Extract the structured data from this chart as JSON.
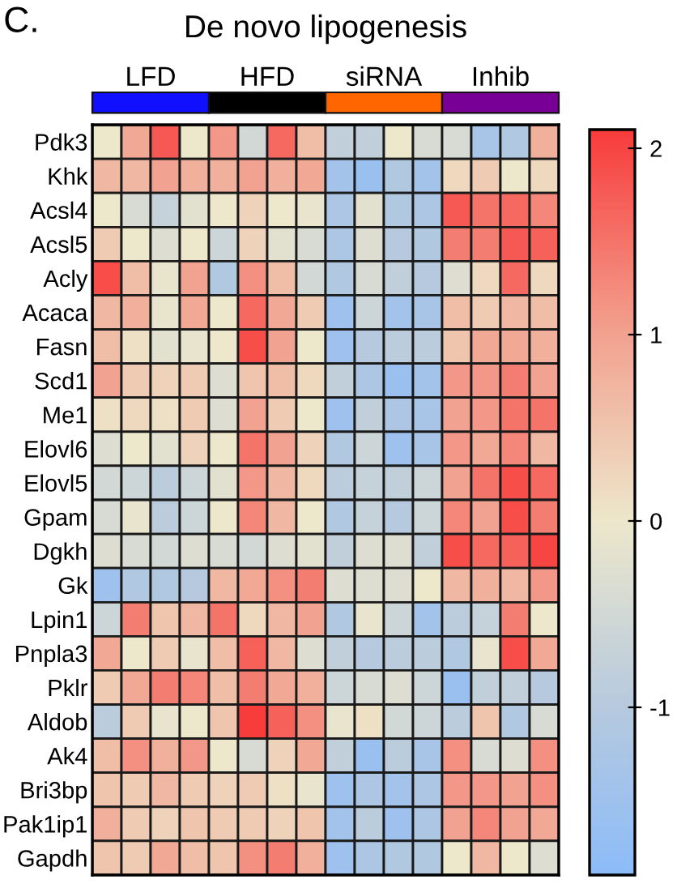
{
  "chart_data": {
    "type": "heatmap",
    "title": "De novo lipogenesis",
    "annotations": [
      "C.",
      "LFD",
      "HFD",
      "siRNA",
      "Inhib"
    ],
    "categories": [
      null,
      null,
      null,
      null,
      null,
      null,
      null,
      null,
      null,
      null,
      null,
      null,
      null,
      null,
      null,
      null
    ],
    "y_categories": [
      "Pdk3",
      "Khk",
      "Acsl4",
      "Acsl5",
      "Acly",
      "Acaca",
      "Fasn",
      "Scd1",
      "Me1",
      "Elovl6",
      "Elovl5",
      "Gpam",
      "Dgkh",
      "Gk",
      "Lpin1",
      "Pnpla3",
      "Pklr",
      "Aldob",
      "Ak4",
      "Bri3bp",
      "Pak1ip1",
      "Gapdh"
    ],
    "cells": [
      [
        0,
        0.9,
        1.8,
        0,
        1.1,
        -0.5,
        1.6,
        0.6,
        -0.8,
        -0.8,
        0,
        -0.4,
        -0.4,
        -1.3,
        -1.1,
        0.8
      ],
      [
        0.7,
        0.7,
        1.0,
        0.8,
        0.8,
        1.0,
        0.8,
        0.9,
        -1.4,
        -1.6,
        -1.1,
        -1.4,
        0.2,
        0.4,
        0,
        0.2
      ],
      [
        0,
        -0.4,
        -0.7,
        -0.2,
        0,
        0.3,
        0,
        -0.1,
        -1.2,
        -0.2,
        -1.1,
        -1.2,
        1.8,
        1.5,
        1.6,
        1.3
      ],
      [
        0.4,
        0,
        -0.3,
        0,
        -0.6,
        0.3,
        -0.2,
        -0.4,
        -1.2,
        -0.3,
        -1.0,
        -1.1,
        1.4,
        1.4,
        1.8,
        1.7
      ],
      [
        1.9,
        0.6,
        -0.1,
        1.0,
        -1.1,
        1.2,
        0.6,
        -0.5,
        -1.1,
        -0.4,
        -0.8,
        -1.0,
        -0.3,
        0.2,
        1.6,
        0.2
      ],
      [
        0.7,
        0.8,
        -0.1,
        0.9,
        0,
        1.6,
        0.9,
        0.4,
        -1.5,
        -0.6,
        -1.4,
        -1.3,
        0.6,
        0.4,
        0.7,
        0.6
      ],
      [
        0.6,
        0.1,
        -0.2,
        -0.1,
        0,
        1.9,
        1.0,
        0,
        -1.5,
        -1.0,
        -0.9,
        -0.9,
        0.5,
        0.9,
        0.9,
        0.8
      ],
      [
        1.0,
        0.4,
        0.3,
        0.4,
        -0.3,
        0.5,
        0.6,
        0.2,
        -0.8,
        -1.2,
        -1.6,
        -1.4,
        1.1,
        1.1,
        1.4,
        1.0
      ],
      [
        0.1,
        0.2,
        0.1,
        0.4,
        -0.3,
        1.0,
        0.4,
        0,
        -1.5,
        -0.8,
        -1.2,
        -1.3,
        1.0,
        1.1,
        1.5,
        1.5
      ],
      [
        -0.3,
        0,
        -0.2,
        0.3,
        0,
        1.5,
        1.0,
        0.3,
        -1.1,
        -0.6,
        -1.5,
        -1.3,
        1.1,
        0.9,
        1.3,
        0.7
      ],
      [
        -0.5,
        -0.6,
        -0.9,
        -0.6,
        -0.2,
        1.1,
        0.7,
        0.2,
        -0.9,
        -0.7,
        -0.8,
        -0.6,
        1.0,
        1.5,
        1.9,
        1.6
      ],
      [
        -0.4,
        -0.1,
        -0.9,
        -0.6,
        0,
        1.3,
        0.7,
        0,
        -1.1,
        -0.7,
        -1.0,
        -0.6,
        1.3,
        1.0,
        1.9,
        1.4
      ],
      [
        -0.3,
        -0.4,
        -0.5,
        -0.3,
        -0.4,
        -0.5,
        -0.3,
        -0.2,
        -0.8,
        -0.3,
        -0.3,
        -0.8,
        1.9,
        1.6,
        1.7,
        2.0
      ],
      [
        -1.5,
        -1.1,
        -1.1,
        -1.0,
        0.7,
        0.9,
        1.2,
        1.4,
        -0.3,
        -0.3,
        -0.3,
        0,
        0.7,
        0.8,
        0.7,
        1.1
      ],
      [
        -0.6,
        1.4,
        0.5,
        0.7,
        1.5,
        0.2,
        0.7,
        1.0,
        -1.1,
        -0.1,
        -0.6,
        -1.4,
        -0.9,
        -0.7,
        1.4,
        0
      ],
      [
        0.9,
        0,
        0.4,
        -0.1,
        0.6,
        1.7,
        0.7,
        -0.3,
        -0.8,
        -1.0,
        -0.9,
        -0.9,
        -1.1,
        -0.1,
        1.9,
        0.9
      ],
      [
        0.4,
        0.9,
        1.4,
        1.3,
        0.6,
        1.4,
        0.9,
        0.8,
        -0.6,
        -0.4,
        -0.3,
        -0.6,
        -1.6,
        -0.8,
        -0.8,
        -1.0
      ],
      [
        -0.9,
        0.4,
        -0.1,
        0,
        0.5,
        2.1,
        1.7,
        1.2,
        -0.1,
        0.1,
        -0.5,
        -0.6,
        -0.9,
        0.5,
        -1.1,
        -0.4
      ],
      [
        0.6,
        1.2,
        0.8,
        1.1,
        0,
        -0.4,
        0.3,
        0.9,
        -0.8,
        -1.6,
        -0.9,
        -1.3,
        1.2,
        -0.4,
        -0.3,
        1.2
      ],
      [
        0.5,
        0.4,
        0.7,
        0.4,
        0.3,
        0.4,
        0.1,
        -0.1,
        -1.5,
        -1.2,
        -1.4,
        -1.2,
        1.1,
        1.1,
        1.0,
        1.2
      ],
      [
        0.8,
        0.4,
        0.3,
        0.5,
        0.4,
        0.4,
        0.3,
        0.5,
        -1.4,
        -0.9,
        -1.5,
        -1.2,
        1.0,
        1.3,
        1.0,
        0.9
      ],
      [
        0.5,
        0.4,
        0.9,
        0.6,
        0.5,
        1.2,
        1.4,
        0.8,
        -1.5,
        -1.2,
        -1.1,
        -1.1,
        0,
        0.7,
        0,
        -0.3
      ]
    ],
    "clim": [
      -1.9,
      2.1
    ],
    "cticks": [
      -1,
      0,
      1,
      2
    ]
  }
}
